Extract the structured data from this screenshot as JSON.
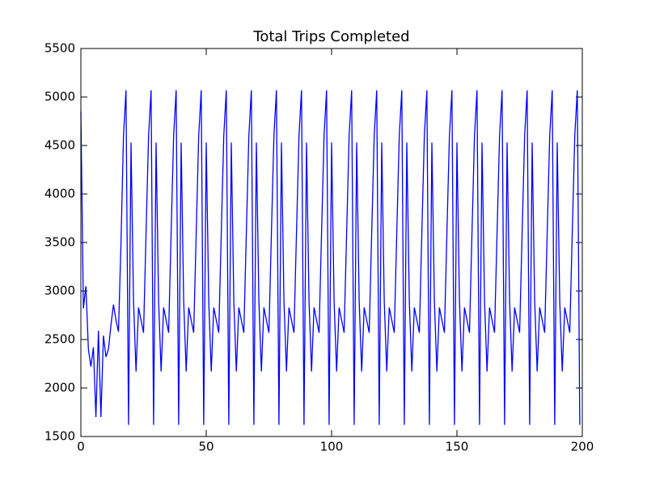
{
  "chart_data": {
    "type": "line",
    "title": "Total Trips Completed",
    "x": [
      0,
      1,
      2,
      3,
      4,
      5,
      6,
      7,
      8,
      9,
      10,
      11,
      12,
      13,
      14,
      15,
      16,
      17,
      18,
      19,
      20,
      21,
      22,
      23,
      24,
      25,
      26,
      27,
      28,
      29,
      30,
      31,
      32,
      33,
      34,
      35,
      36,
      37,
      38,
      39,
      40,
      41,
      42,
      43,
      44,
      45,
      46,
      47,
      48,
      49,
      50,
      51,
      52,
      53,
      54,
      55,
      56,
      57,
      58,
      59,
      60,
      61,
      62,
      63,
      64,
      65,
      66,
      67,
      68,
      69,
      70,
      71,
      72,
      73,
      74,
      75,
      76,
      77,
      78,
      79,
      80,
      81,
      82,
      83,
      84,
      85,
      86,
      87,
      88,
      89,
      90,
      91,
      92,
      93,
      94,
      95,
      96,
      97,
      98,
      99,
      100,
      101,
      102,
      103,
      104,
      105,
      106,
      107,
      108,
      109,
      110,
      111,
      112,
      113,
      114,
      115,
      116,
      117,
      118,
      119,
      120,
      121,
      122,
      123,
      124,
      125,
      126,
      127,
      128,
      129,
      130,
      131,
      132,
      133,
      134,
      135,
      136,
      137,
      138,
      139,
      140,
      141,
      142,
      143,
      144,
      145,
      146,
      147,
      148,
      149,
      150,
      151,
      152,
      153,
      154,
      155,
      156,
      157,
      158,
      159,
      160,
      161,
      162,
      163,
      164,
      165,
      166,
      167,
      168,
      169,
      170,
      171,
      172,
      173,
      174,
      175,
      176,
      177,
      178,
      179,
      180,
      181,
      182,
      183,
      184,
      185,
      186,
      187,
      188,
      189,
      190,
      191,
      192,
      193,
      194,
      195,
      196,
      197,
      198,
      199
    ],
    "values": [
      4850,
      2820,
      3050,
      2400,
      2220,
      2420,
      1700,
      2590,
      1700,
      2540,
      2320,
      2400,
      2650,
      2860,
      2700,
      2580,
      3500,
      4600,
      5070,
      1620,
      4530,
      2900,
      2170,
      2830,
      2700,
      2570,
      3600,
      4600,
      5070,
      1620,
      4530,
      2900,
      2170,
      2830,
      2700,
      2570,
      3600,
      4600,
      5070,
      1620,
      4530,
      2900,
      2170,
      2830,
      2700,
      2570,
      3600,
      4600,
      5070,
      1620,
      4530,
      2900,
      2170,
      2830,
      2700,
      2570,
      3600,
      4600,
      5070,
      1620,
      4530,
      2900,
      2170,
      2830,
      2700,
      2570,
      3600,
      4600,
      5070,
      1620,
      4530,
      2900,
      2170,
      2830,
      2700,
      2570,
      3600,
      4600,
      5070,
      1620,
      4530,
      2900,
      2170,
      2830,
      2700,
      2570,
      3600,
      4600,
      5070,
      1620,
      4530,
      2900,
      2170,
      2830,
      2700,
      2570,
      3600,
      4600,
      5070,
      1620,
      4530,
      2900,
      2170,
      2830,
      2700,
      2570,
      3600,
      4600,
      5070,
      1620,
      4530,
      2900,
      2170,
      2830,
      2700,
      2570,
      3600,
      4600,
      5070,
      1620,
      4530,
      2900,
      2170,
      2830,
      2700,
      2570,
      3600,
      4600,
      5070,
      1620,
      4530,
      2900,
      2170,
      2830,
      2700,
      2570,
      3600,
      4600,
      5070,
      1620,
      4530,
      2900,
      2170,
      2830,
      2700,
      2570,
      3600,
      4600,
      5070,
      1620,
      4530,
      2900,
      2170,
      2830,
      2700,
      2570,
      3600,
      4600,
      5070,
      1620,
      4530,
      2900,
      2170,
      2830,
      2700,
      2570,
      3600,
      4600,
      5070,
      1620,
      4530,
      2900,
      2170,
      2830,
      2700,
      2570,
      3600,
      4600,
      5070,
      1620,
      4530,
      2900,
      2170,
      2830,
      2700,
      2570,
      3600,
      4600,
      5070,
      1620,
      4530,
      2900,
      2170,
      2830,
      2700,
      2570,
      3600,
      4600,
      5070,
      1620
    ],
    "color": "#0000ff",
    "xlim": [
      0,
      200
    ],
    "xticks": [
      0,
      50,
      100,
      150,
      200
    ],
    "ylim": [
      1500,
      5500
    ],
    "yticks": [
      1500,
      2000,
      2500,
      3000,
      3500,
      4000,
      4500,
      5000,
      5500
    ],
    "grid": false
  }
}
